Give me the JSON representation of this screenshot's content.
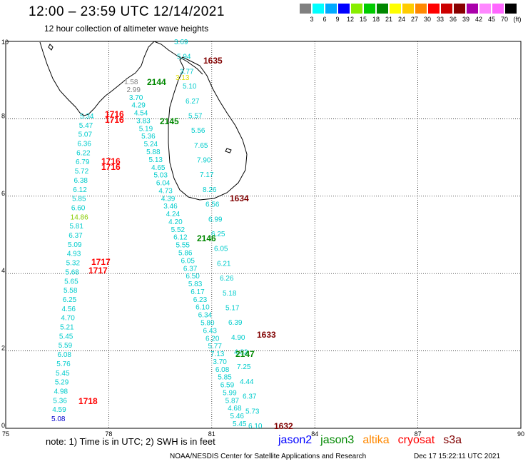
{
  "title": "12:00 – 23:59 UTC 12/14/2021",
  "subtitle": "12 hour collection of altimeter wave heights",
  "colorbar": {
    "labels": [
      "3",
      "6",
      "9",
      "12",
      "15",
      "18",
      "21",
      "24",
      "27",
      "30",
      "33",
      "36",
      "39",
      "42",
      "45",
      "70",
      "(ft)"
    ],
    "colors": [
      "#808080",
      "#00ffff",
      "#00aaff",
      "#0000ff",
      "#88ee00",
      "#00cc00",
      "#008800",
      "#ffff00",
      "#ffcc00",
      "#ff8800",
      "#ff0000",
      "#cc0000",
      "#880000",
      "#aa00aa",
      "#ff88ff",
      "#ff66ff",
      "#000000"
    ]
  },
  "axes": {
    "x_ticks": [
      "75",
      "78",
      "81",
      "84",
      "87",
      "90"
    ],
    "y_ticks": [
      "0",
      "2",
      "4",
      "6",
      "8",
      "10"
    ]
  },
  "colors": {
    "jason2": "#0000ff",
    "jason3": "#008800",
    "altika": "#ff8800",
    "cryosat": "#ff0000",
    "s3a": "#800000",
    "cyan": "#00cccc"
  },
  "note": "note: 1) Time is in UTC; 2) SWH is in feet",
  "legend": [
    "jason2",
    "jason3",
    "altika",
    "cryosat",
    "s3a"
  ],
  "footer_left": "NOAA/NESDIS Center for Satellite Applications and Research",
  "footer_right": "Dec 17 15:22:11 UTC 2021",
  "track_values": {
    "west": [
      "5.34",
      "5.47",
      "5.07",
      "6.36",
      "6.22",
      "6.79",
      "5.72",
      "6.38",
      "6.12",
      "5.85",
      "6.60",
      "14.86",
      "5.81",
      "6.37",
      "5.09",
      "4.93",
      "5.32",
      "5.68",
      "5.65",
      "5.58",
      "6.25",
      "4.56",
      "4.70",
      "5.21",
      "5.45",
      "5.59",
      "6.08",
      "5.76",
      "5.45",
      "5.29",
      "4.98",
      "5.36",
      "4.59",
      "5.08"
    ],
    "middle": [
      "1.58",
      "2.99",
      "3.70",
      "4.29",
      "4.54",
      "3.83",
      "5.19",
      "5.36",
      "5.24",
      "5.88",
      "5.13",
      "4.65",
      "5.03",
      "6.04",
      "4.73",
      "4.39",
      "3.46",
      "4.24",
      "4.20",
      "5.52",
      "6.12",
      "5.55",
      "5.86",
      "6.05",
      "6.37",
      "6.50",
      "5.83",
      "6.17",
      "6.23",
      "6.10",
      "6.34",
      "5.80",
      "6.43",
      "6.20",
      "5.77",
      "7.13",
      "3.70",
      "6.08",
      "5.85",
      "6.59",
      "5.99",
      "5.87",
      "4.68",
      "5.46",
      "5.45"
    ],
    "east": [
      "3.69",
      "5.94",
      "3.77",
      "5.10",
      "6.27",
      "5.57",
      "5.56",
      "7.65",
      "7.90",
      "7.17",
      "8.26",
      "6.56",
      "6.99",
      "6.25",
      "6.05",
      "6.21",
      "6.26",
      "5.18",
      "5.17",
      "6.39",
      "4.90",
      "4.82",
      "7.25",
      "4.44",
      "6.37",
      "5.73",
      "6.10"
    ],
    "altika_value": "3.13"
  },
  "passes": {
    "s3a": [
      "1635",
      "1634",
      "1633",
      "1632"
    ],
    "jason3": [
      "2144",
      "2145",
      "2146",
      "2147"
    ],
    "cryosat": [
      "1716",
      "1716",
      "1716",
      "1716",
      "1717",
      "1717",
      "1718"
    ]
  }
}
